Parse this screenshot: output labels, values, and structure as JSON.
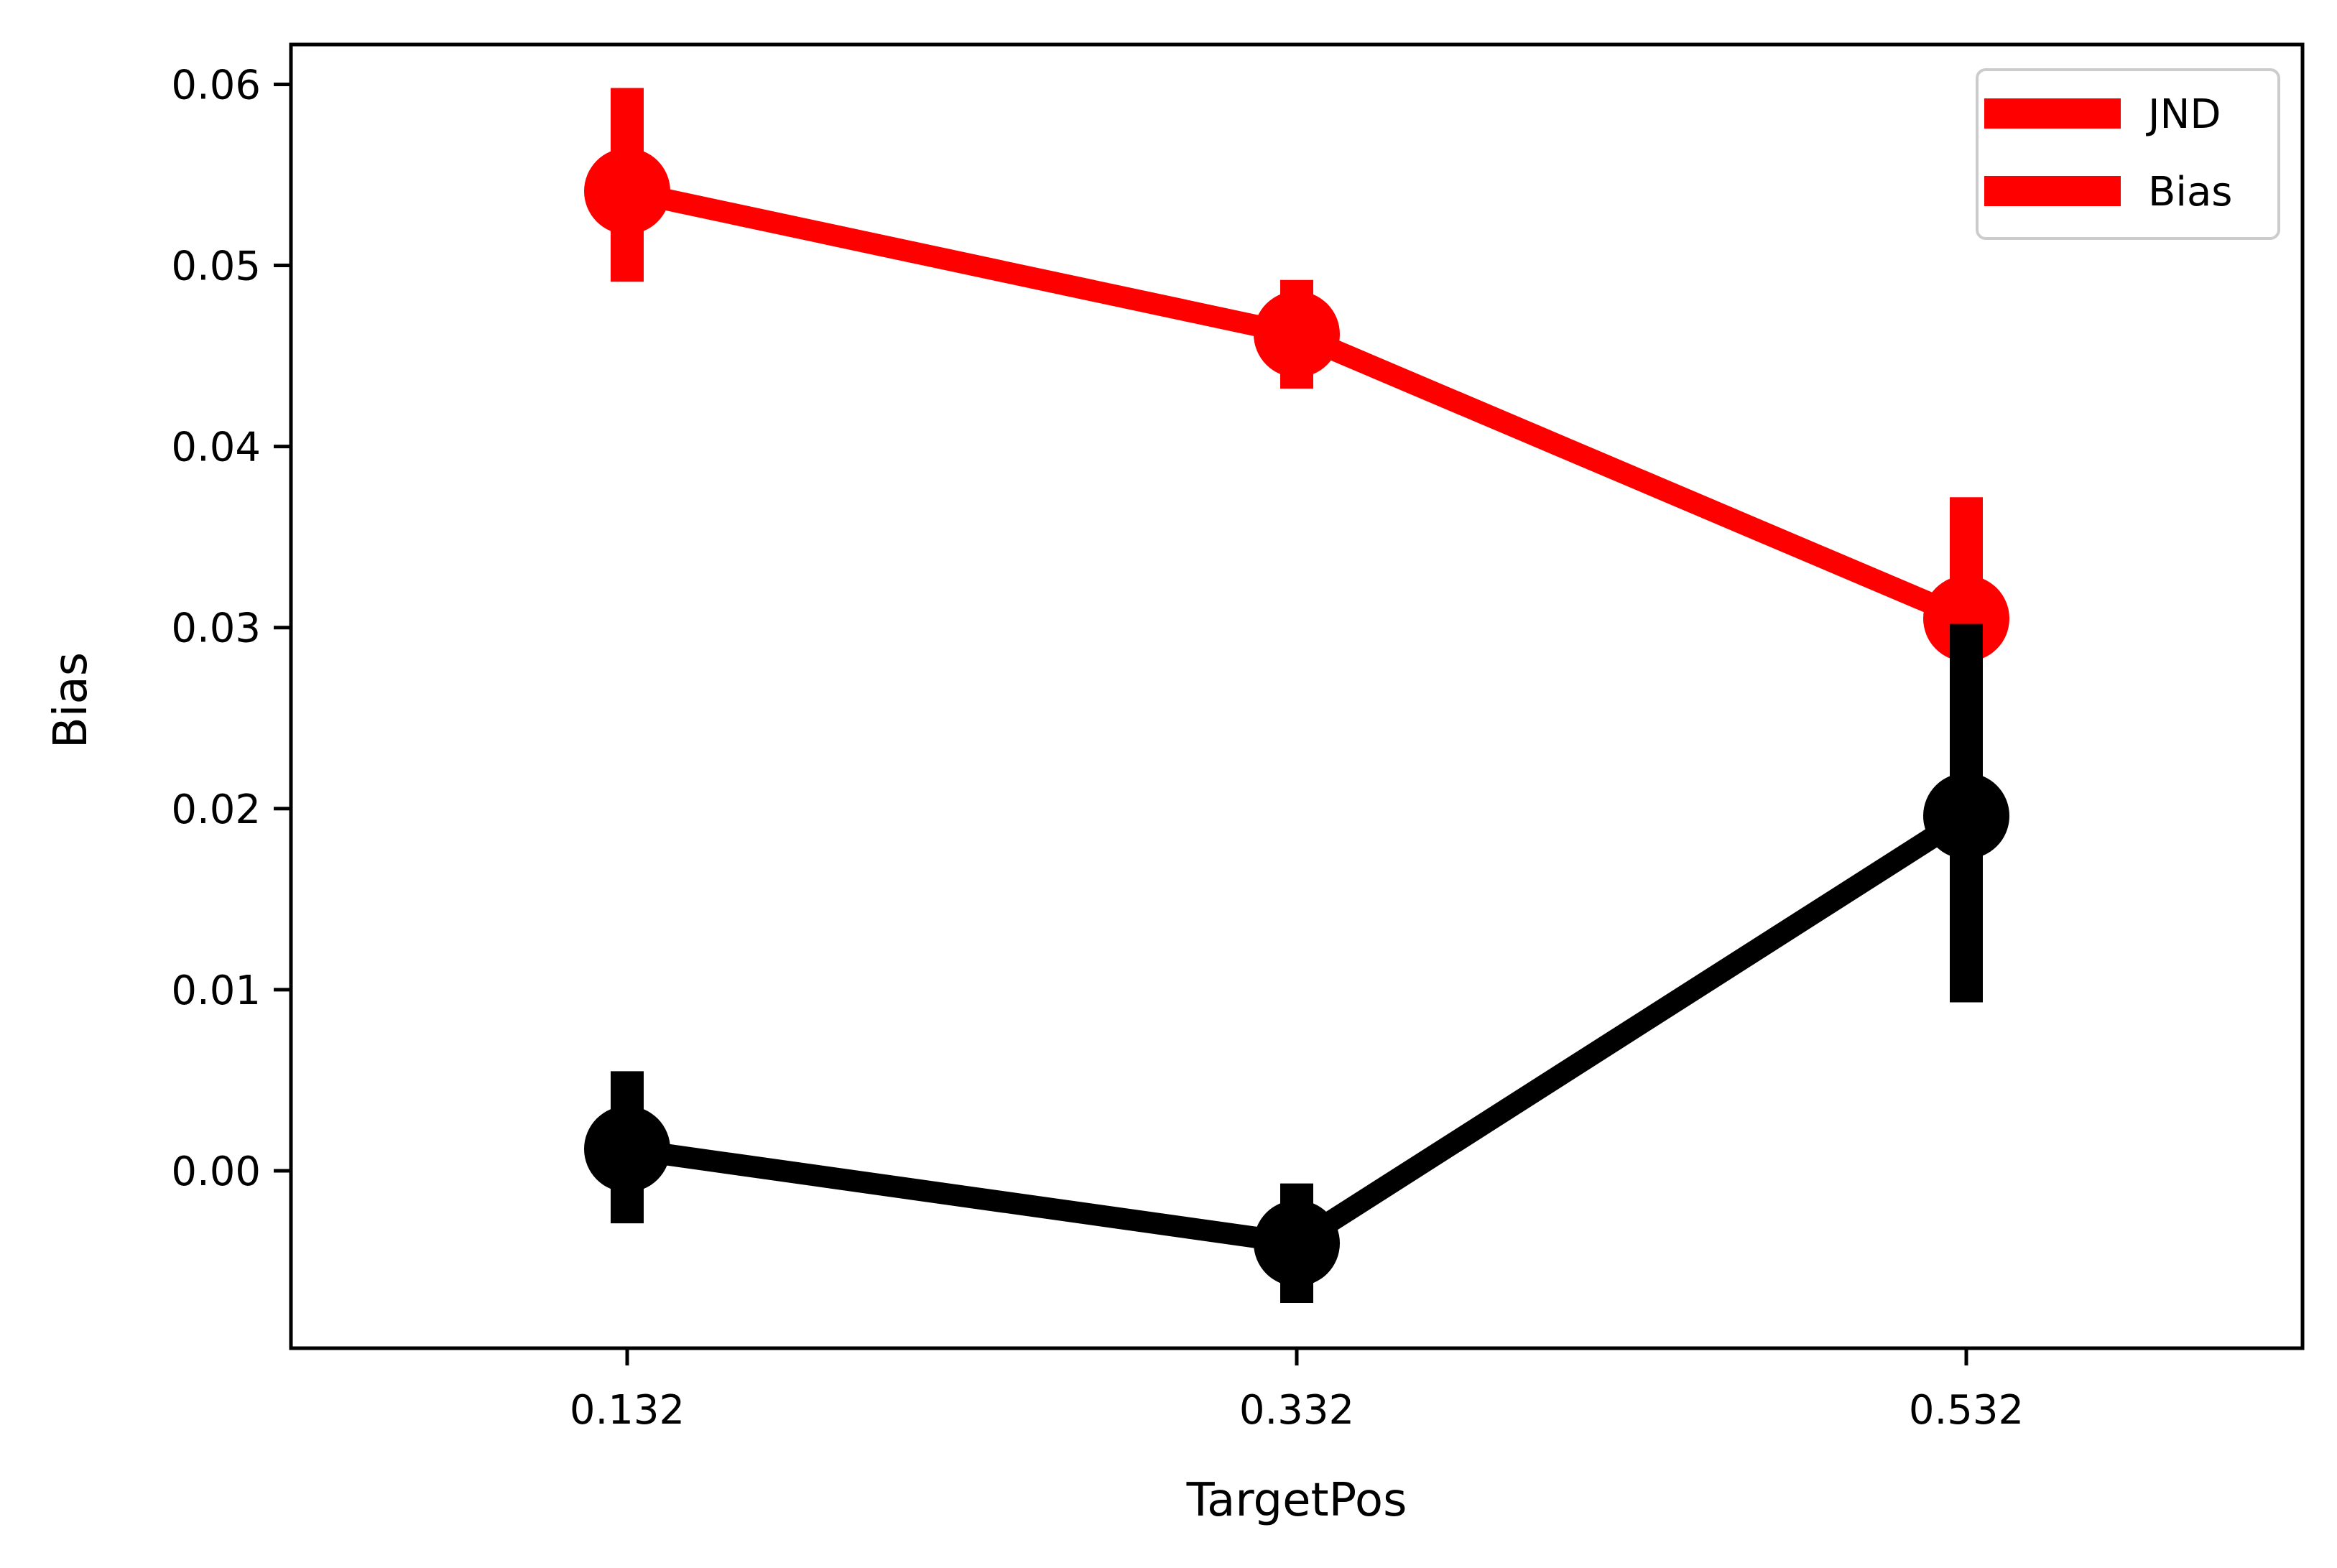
{
  "chart_data": {
    "type": "line",
    "categories": [
      "0.132",
      "0.332",
      "0.532"
    ],
    "xlabel": "TargetPos",
    "ylabel": "Bias",
    "ylim": [
      -0.0098,
      0.0622
    ],
    "yticks": [
      0.0,
      0.01,
      0.02,
      0.03,
      0.04,
      0.05,
      0.06
    ],
    "ytick_labels": [
      "0.00",
      "0.01",
      "0.02",
      "0.03",
      "0.04",
      "0.05",
      "0.06"
    ],
    "grid": false,
    "legend_position": "top-right",
    "legend": [
      {
        "label": "JND",
        "color": "#ff0000"
      },
      {
        "label": "Bias",
        "color": "#ff0000"
      }
    ],
    "series": [
      {
        "color": "#ff0000",
        "values": [
          0.0541,
          0.0462,
          0.0305
        ],
        "err_low": [
          0.0491,
          0.0432,
          0.0287
        ],
        "err_high": [
          0.0598,
          0.0492,
          0.0372
        ]
      },
      {
        "color": "#000000",
        "values": [
          0.0012,
          -0.004,
          0.0196
        ],
        "err_low": [
          -0.0029,
          -0.0073,
          0.0093
        ],
        "err_high": [
          0.0055,
          -0.0007,
          0.0302
        ]
      }
    ]
  }
}
